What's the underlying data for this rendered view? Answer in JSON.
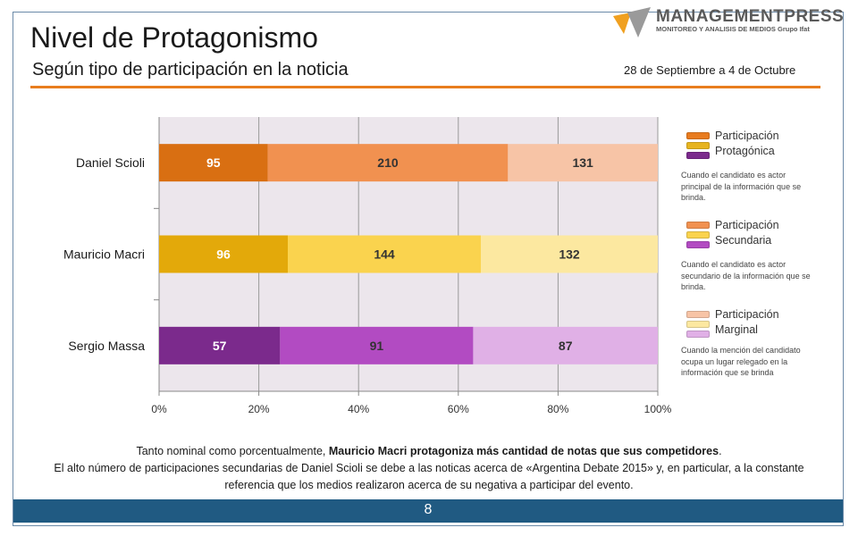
{
  "header": {
    "title": "Nivel de Protagonismo",
    "subtitle": "Según tipo de participación en la noticia",
    "date_range": "28 de Septiembre a 4 de Octubre"
  },
  "logo": {
    "name": "MANAGEMENTPRESS",
    "tagline": "MONITOREO Y ANALISIS DE MEDIOS Grupo Ifat"
  },
  "chart_data": {
    "type": "bar",
    "orientation": "horizontal",
    "stacked": "percent",
    "categories": [
      "Daniel Scioli",
      "Mauricio Macri",
      "Sergio Massa"
    ],
    "series": [
      {
        "name": "Participación Protagónica",
        "values": [
          95,
          96,
          57
        ],
        "colors": [
          "#d96f12",
          "#e3a90a",
          "#7b2a8c"
        ],
        "label_color": "#ffffff"
      },
      {
        "name": "Participación Secundaria",
        "values": [
          210,
          144,
          91
        ],
        "colors": [
          "#f19150",
          "#fad34e",
          "#b24bc2"
        ],
        "label_color": "#333333"
      },
      {
        "name": "Participación Marginal",
        "values": [
          131,
          132,
          87
        ],
        "colors": [
          "#f7c4a6",
          "#fce8a0",
          "#e0b0e6"
        ],
        "label_color": "#333333"
      }
    ],
    "x_ticks": [
      "0%",
      "20%",
      "40%",
      "60%",
      "80%",
      "100%"
    ],
    "xlim": [
      0,
      100
    ],
    "grid": true,
    "plot_background": "#ece6ec",
    "legend_position": "right"
  },
  "legend": [
    {
      "title": "Participación Protagónica",
      "description": "Cuando el candidato es actor principal de la información que se brinda.",
      "swatches": [
        "#e87b1e",
        "#e7b420",
        "#7b2a8c"
      ]
    },
    {
      "title": "Participación Secundaria",
      "description": "Cuando el candidato es actor secundario de la información que se brinda.",
      "swatches": [
        "#f19150",
        "#fad34e",
        "#b24bc2"
      ]
    },
    {
      "title": "Participación Marginal",
      "description": "Cuando la mención del candidato ocupa un lugar relegado en la información que se brinda",
      "swatches": [
        "#f7c4a6",
        "#fce8a0",
        "#e0b0e6"
      ]
    }
  ],
  "note": {
    "line1_prefix": "Tanto nominal como porcentualmente, ",
    "line1_bold": "Mauricio Macri protagoniza más cantidad de notas que sus competidores",
    "line1_suffix": ".",
    "line2": "El alto número de participaciones secundarias de Daniel Scioli se debe a las noticas acerca de «Argentina Debate 2015» y, en particular, a la constante referencia que los medios realizaron acerca de su negativa a participar del evento."
  },
  "footer": {
    "page_number": "8"
  },
  "colors": {
    "accent": "#e87d1e",
    "footer_bg": "#205a82",
    "frame": "#6b8aa8"
  }
}
